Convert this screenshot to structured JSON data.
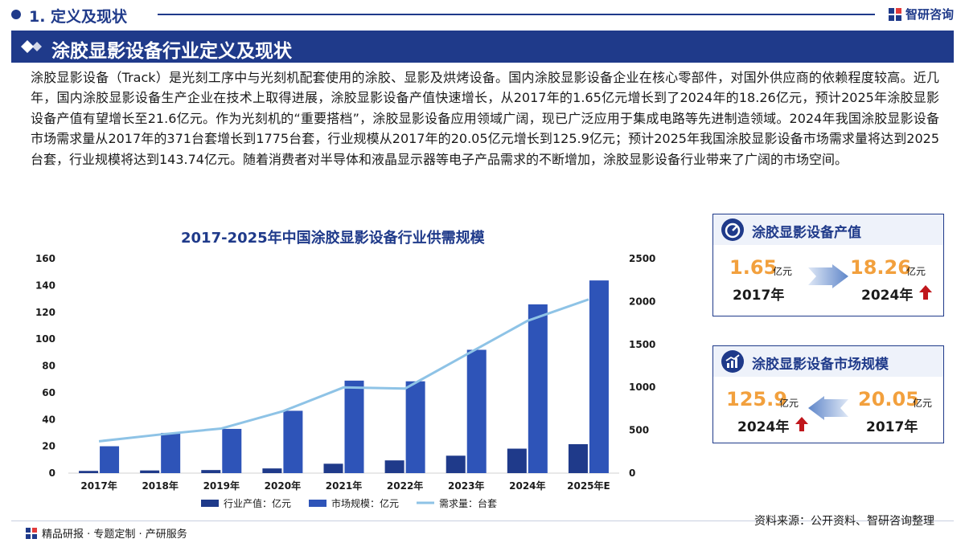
{
  "header": {
    "section": "1. 定义及现状",
    "brand": "智研咨询",
    "banner_title": "涂胶显影设备行业定义及现状"
  },
  "paragraph": "涂胶显影设备（Track）是光刻工序中与光刻机配套使用的涂胶、显影及烘烤设备。国内涂胶显影设备企业在核心零部件，对国外供应商的依赖程度较高。近几年，国内涂胶显影设备生产企业在技术上取得进展，涂胶显影设备产值快速增长，从2017年的1.65亿元增长到了2024年的18.26亿元，预计2025年涂胶显影设备产值有望增长至21.6亿元。作为光刻机的“重要搭档”，涂胶显影设备应用领域广阔，现已广泛应用于集成电路等先进制造领域。2024年我国涂胶显影设备市场需求量从2017年的371台套增长到1775台套，行业规模从2017年的20.05亿元增长到125.9亿元；预计2025年我国涂胶显影设备市场需求量将达到2025台套，行业规模将达到143.74亿元。随着消费者对半导体和液晶显示器等电子产品需求的不断增加，涂胶显影设备行业带来了广阔的市场空间。",
  "chart_data": {
    "type": "bar",
    "title": "2017-2025年中国涂胶显影设备行业供需规模",
    "categories": [
      "2017年",
      "2018年",
      "2019年",
      "2020年",
      "2021年",
      "2022年",
      "2023年",
      "2024年",
      "2025年E"
    ],
    "series": [
      {
        "name": "行业产值：亿元",
        "type": "bar",
        "axis": "left",
        "color": "#1f3a8a",
        "values": [
          1.65,
          2.0,
          2.3,
          3.5,
          7.0,
          9.5,
          13.0,
          18.26,
          21.6
        ]
      },
      {
        "name": "市场规模：亿元",
        "type": "bar",
        "axis": "left",
        "color": "#2e54b8",
        "values": [
          20.05,
          30.0,
          33.0,
          46.5,
          69.0,
          68.5,
          92.0,
          125.9,
          143.74
        ]
      },
      {
        "name": "需求量：台套",
        "type": "line",
        "axis": "right",
        "color": "#8ec3e6",
        "values": [
          371,
          450,
          520,
          720,
          1000,
          985,
          1380,
          1775,
          2025
        ]
      }
    ],
    "y_left": {
      "min": 0,
      "max": 160,
      "ticks": [
        0,
        20,
        40,
        60,
        80,
        100,
        120,
        140,
        160
      ]
    },
    "y_right": {
      "min": 0,
      "max": 2500,
      "ticks": [
        0,
        500,
        1000,
        1500,
        2000,
        2500
      ]
    },
    "legend_position": "bottom",
    "grid": false
  },
  "card1": {
    "title": "涂胶显影设备产值",
    "from_value": "1.65",
    "from_unit": "亿元",
    "from_year": "2017年",
    "to_value": "18.26",
    "to_unit": "亿元",
    "to_year": "2024年"
  },
  "card2": {
    "title": "涂胶显影设备市场规模",
    "to_value": "125.9",
    "to_unit": "亿元",
    "to_year": "2024年",
    "from_value": "20.05",
    "from_unit": "亿元",
    "from_year": "2017年"
  },
  "footer": {
    "left": "精品研报 · 专题定制 · 产研服务",
    "source": "资料来源：公开资料、智研咨询整理"
  },
  "colors": {
    "primary": "#1f3a8a",
    "accent": "#f2a03d",
    "up_arrow": "#c0171c"
  }
}
